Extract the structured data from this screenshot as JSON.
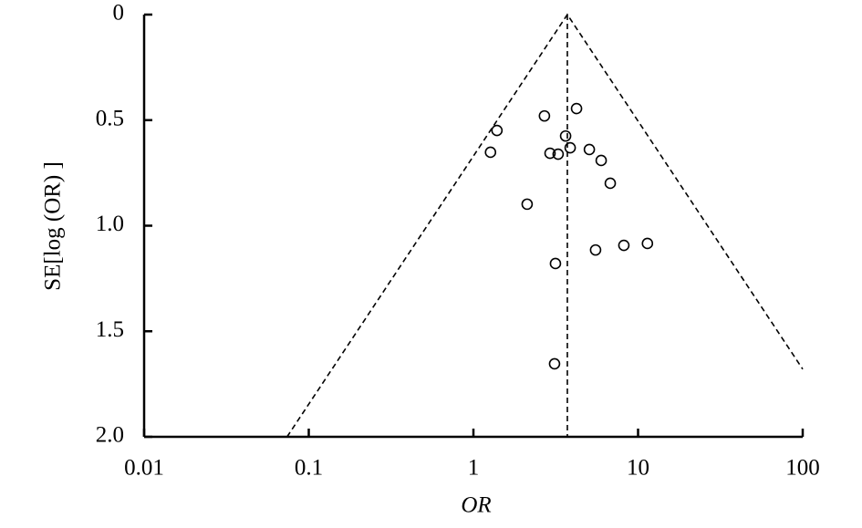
{
  "chart_data": {
    "type": "scatter",
    "x_label": "OR",
    "y_label": "SE[log (OR) ]",
    "x": [
      4.23,
      2.7,
      1.39,
      3.63,
      1.27,
      2.92,
      3.27,
      3.87,
      5.06,
      5.97,
      6.78,
      2.12,
      11.4,
      8.2,
      5.52,
      3.15,
      3.11
    ],
    "y": [
      0.445,
      0.48,
      0.549,
      0.575,
      0.652,
      0.657,
      0.661,
      0.631,
      0.639,
      0.691,
      0.799,
      0.898,
      1.084,
      1.093,
      1.115,
      1.179,
      1.654
    ],
    "pooled_or": 3.72,
    "x_log": true,
    "y_inverted": true,
    "xlim": [
      0.01,
      100
    ],
    "xticks": [
      0.01,
      0.1,
      1,
      10,
      100
    ],
    "ylim": [
      0,
      2
    ],
    "yticks": [
      0,
      0.5,
      {
        "value": 1,
        "label": "1.0"
      },
      1.5,
      {
        "value": 2,
        "label": "2.0"
      }
    ]
  }
}
